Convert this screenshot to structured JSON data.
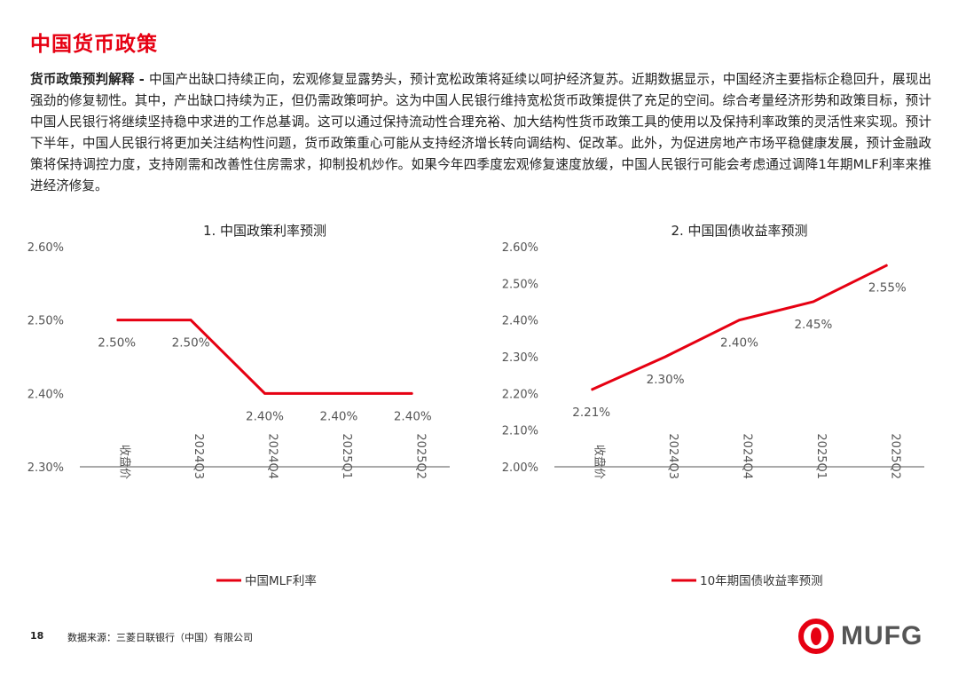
{
  "page": {
    "title": "中国货币政策",
    "commentary_lead": "货币政策预判解释 - ",
    "commentary_body": "中国产出缺口持续正向，宏观修复显露势头，预计宽松政策将延续以呵护经济复苏。近期数据显示，中国经济主要指标企稳回升，展现出强劲的修复韧性。其中，产出缺口持续为正，但仍需政策呵护。这为中国人民银行维持宽松货币政策提供了充足的空间。综合考量经济形势和政策目标，预计中国人民银行将继续坚持稳中求进的工作总基调。这可以通过保持流动性合理充裕、加大结构性货币政策工具的使用以及保持利率政策的灵活性来实现。预计下半年，中国人民银行将更加关注结构性问题，货币政策重心可能从支持经济增长转向调结构、促改革。此外，为促进房地产市场平稳健康发展，预计金融政策将保持调控力度，支持刚需和改善性住房需求，抑制投机炒作。如果今年四季度宏观修复速度放缓，中国人民银行可能会考虑通过调降1年期MLF利率来推进经济修复。"
  },
  "colors": {
    "accent": "#e60012",
    "text": "#222222",
    "axis": "#555555",
    "logo_gray": "#555555"
  },
  "chart_data": [
    {
      "type": "line",
      "title": "1. 中国政策利率预测",
      "categories": [
        "收盘价",
        "2024Q3",
        "2024Q4",
        "2025Q1",
        "2025Q2"
      ],
      "series": [
        {
          "name": "中国MLF利率",
          "values": [
            2.5,
            2.5,
            2.4,
            2.4,
            2.4
          ],
          "color": "#e60012"
        }
      ],
      "data_labels": [
        "2.50%",
        "2.50%",
        "2.40%",
        "2.40%",
        "2.40%"
      ],
      "ylim": [
        2.3,
        2.6
      ],
      "yticks": [
        2.3,
        2.4,
        2.5,
        2.6
      ],
      "ytick_labels": [
        "2.30%",
        "2.40%",
        "2.50%",
        "2.60%"
      ],
      "xlabel": "",
      "ylabel": "",
      "grid": false,
      "legend": "bottom"
    },
    {
      "type": "line",
      "title": "2. 中国国债收益率预测",
      "categories": [
        "收盘价",
        "2024Q3",
        "2024Q4",
        "2025Q1",
        "2025Q2"
      ],
      "series": [
        {
          "name": "10年期国债收益率预测",
          "values": [
            2.21,
            2.3,
            2.4,
            2.45,
            2.55
          ],
          "color": "#e60012"
        }
      ],
      "data_labels": [
        "2.21%",
        "2.30%",
        "2.40%",
        "2.45%",
        "2.55%"
      ],
      "ylim": [
        2.0,
        2.6
      ],
      "yticks": [
        2.0,
        2.1,
        2.2,
        2.3,
        2.4,
        2.5,
        2.6
      ],
      "ytick_labels": [
        "2.00%",
        "2.10%",
        "2.20%",
        "2.30%",
        "2.40%",
        "2.50%",
        "2.60%"
      ],
      "xlabel": "",
      "ylabel": "",
      "grid": false,
      "legend": "bottom"
    }
  ],
  "footer": {
    "page_number": "18",
    "source": "数据来源：三菱日联银行（中国）有限公司",
    "logo_text": "MUFG"
  }
}
